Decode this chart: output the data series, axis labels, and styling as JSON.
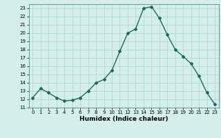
{
  "x": [
    0,
    1,
    2,
    3,
    4,
    5,
    6,
    7,
    8,
    9,
    10,
    11,
    12,
    13,
    14,
    15,
    16,
    17,
    18,
    19,
    20,
    21,
    22,
    23
  ],
  "y": [
    12.2,
    13.3,
    12.8,
    12.2,
    11.8,
    11.9,
    12.2,
    13.0,
    14.0,
    14.4,
    15.5,
    17.8,
    20.0,
    20.5,
    23.0,
    23.2,
    21.8,
    19.8,
    18.0,
    17.2,
    16.3,
    14.8,
    12.8,
    11.4
  ],
  "line_color": "#1a6b5a",
  "marker": "D",
  "marker_size": 2.0,
  "bg_color": "#d4eeeb",
  "grid_color": "#aed4d0",
  "xlabel": "Humidex (Indice chaleur)",
  "xlim": [
    -0.5,
    23.5
  ],
  "ylim": [
    11,
    23.5
  ],
  "yticks": [
    11,
    12,
    13,
    14,
    15,
    16,
    17,
    18,
    19,
    20,
    21,
    22,
    23
  ],
  "xticks": [
    0,
    1,
    2,
    3,
    4,
    5,
    6,
    7,
    8,
    9,
    10,
    11,
    12,
    13,
    14,
    15,
    16,
    17,
    18,
    19,
    20,
    21,
    22,
    23
  ],
  "tick_fontsize": 5.0,
  "xlabel_fontsize": 6.5,
  "line_width": 1.0
}
